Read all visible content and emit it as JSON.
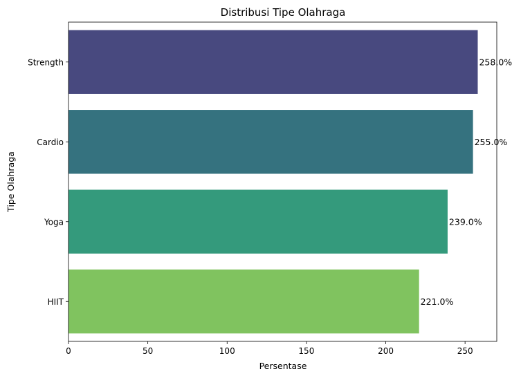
{
  "chart_data": {
    "type": "bar",
    "orientation": "horizontal",
    "title": "Distribusi Tipe Olahraga",
    "xlabel": "Persentase",
    "ylabel": "Tipe Olahraga",
    "categories": [
      "Strength",
      "Cardio",
      "Yoga",
      "HIIT"
    ],
    "values": [
      258,
      255,
      239,
      221
    ],
    "data_labels": [
      "258.0%",
      "255.0%",
      "239.0%",
      "221.0%"
    ],
    "colors": [
      "#48497f",
      "#35727f",
      "#349a7c",
      "#80c35f"
    ],
    "xlim": [
      0,
      270
    ],
    "xticks": [
      0,
      50,
      100,
      150,
      200,
      250
    ],
    "grid": false,
    "legend": "none"
  }
}
